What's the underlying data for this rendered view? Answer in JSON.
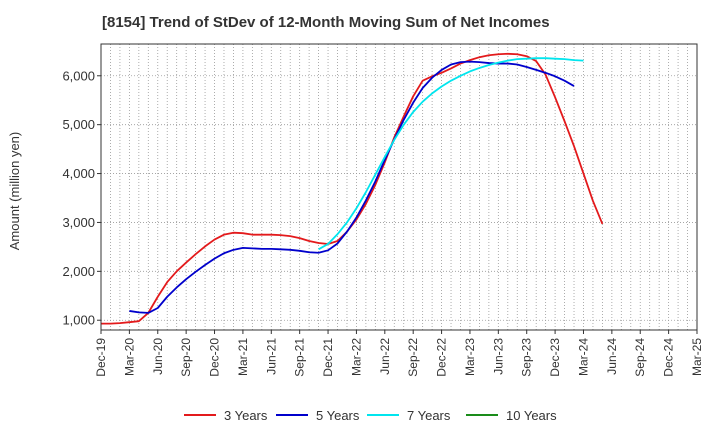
{
  "chart_data": {
    "type": "line",
    "title": "[8154]  Trend of StDev of 12-Month Moving Sum of Net Incomes",
    "ylabel": "Amount (million yen)",
    "xlabel": "",
    "ylim": [
      800,
      6650
    ],
    "yticks": [
      1000,
      2000,
      3000,
      4000,
      5000,
      6000
    ],
    "ytick_labels": [
      "1,000",
      "2,000",
      "3,000",
      "4,000",
      "5,000",
      "6,000"
    ],
    "xticks": [
      "Dec-19",
      "Mar-20",
      "Jun-20",
      "Sep-20",
      "Dec-20",
      "Mar-21",
      "Jun-21",
      "Sep-21",
      "Dec-21",
      "Mar-22",
      "Jun-22",
      "Sep-22",
      "Dec-22",
      "Mar-23",
      "Jun-23",
      "Sep-23",
      "Dec-23",
      "Mar-24",
      "Jun-24",
      "Sep-24",
      "Dec-24",
      "Mar-25"
    ],
    "grid": true,
    "legend_position": "bottom",
    "series": [
      {
        "name": "3 Years",
        "color": "#e31a1c",
        "start_index": 0,
        "values": [
          930,
          930,
          940,
          960,
          980,
          1150,
          1480,
          1780,
          2000,
          2180,
          2350,
          2510,
          2650,
          2750,
          2790,
          2780,
          2750,
          2750,
          2750,
          2740,
          2720,
          2680,
          2620,
          2580,
          2560,
          2620,
          2810,
          3060,
          3380,
          3770,
          4230,
          4740,
          5170,
          5580,
          5900,
          5990,
          6060,
          6150,
          6250,
          6320,
          6380,
          6420,
          6440,
          6450,
          6440,
          6400,
          6300,
          6020,
          5560,
          5070,
          4560,
          4000,
          3440,
          2970
        ]
      },
      {
        "name": "5 Years",
        "color": "#0000cc",
        "start_index": 3,
        "values": [
          1190,
          1160,
          1150,
          1250,
          1480,
          1670,
          1840,
          1990,
          2130,
          2260,
          2370,
          2440,
          2480,
          2470,
          2460,
          2460,
          2450,
          2440,
          2420,
          2390,
          2380,
          2430,
          2570,
          2810,
          3100,
          3450,
          3840,
          4280,
          4700,
          5100,
          5450,
          5750,
          5960,
          6120,
          6230,
          6280,
          6290,
          6280,
          6260,
          6250,
          6250,
          6230,
          6180,
          6120,
          6060,
          5990,
          5900,
          5790
        ]
      },
      {
        "name": "7 Years",
        "color": "#00e5ee",
        "start_index": 23,
        "values": [
          2450,
          2560,
          2760,
          3000,
          3290,
          3620,
          3980,
          4340,
          4690,
          5000,
          5260,
          5470,
          5640,
          5780,
          5900,
          6000,
          6090,
          6160,
          6220,
          6270,
          6310,
          6340,
          6350,
          6360,
          6360,
          6350,
          6340,
          6320,
          6310
        ]
      },
      {
        "name": "10 Years",
        "color": "#1a8c1a",
        "start_index": 0,
        "values": []
      }
    ]
  }
}
